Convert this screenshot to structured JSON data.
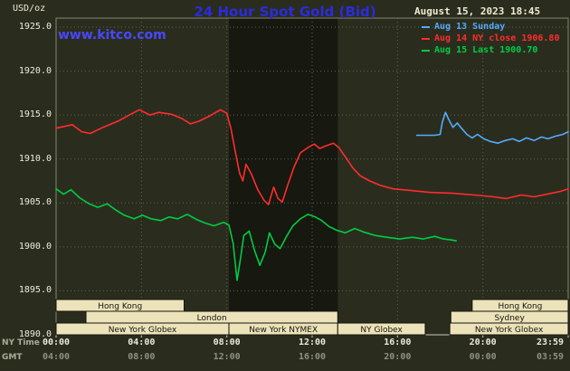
{
  "header": {
    "units_label": "USD/oz",
    "title": "24 Hour Spot Gold (Bid)",
    "datetime": "August 15, 2023 18:45",
    "site_link": "www.kitco.com"
  },
  "axes": {
    "ny_time_caption": "NY Time",
    "gmt_caption": "GMT",
    "y_tick_labels": [
      "1925.0",
      "1920.0",
      "1915.0",
      "1910.0",
      "1905.0",
      "1900.0",
      "1895.0",
      "1890.0"
    ],
    "ny_tick_labels": [
      "00:00",
      "04:00",
      "08:00",
      "12:00",
      "16:00",
      "20:00",
      "23:59"
    ],
    "gmt_tick_labels": [
      "04:00",
      "08:00",
      "12:00",
      "16:00",
      "20:00",
      "00:00",
      "03:59"
    ]
  },
  "sessions": [
    {
      "row": 0,
      "start_h": 0,
      "end_h": 6.0,
      "label": "Hong Kong"
    },
    {
      "row": 0,
      "start_h": 19.5,
      "end_h": 24,
      "label": "Hong Kong"
    },
    {
      "row": 1,
      "start_h": 1.4,
      "end_h": 13.2,
      "label": "London"
    },
    {
      "row": 1,
      "start_h": 18.5,
      "end_h": 24,
      "label": "Sydney"
    },
    {
      "row": 2,
      "start_h": 0,
      "end_h": 8.1,
      "label": "New York Globex"
    },
    {
      "row": 2,
      "start_h": 8.1,
      "end_h": 13.2,
      "label": "New York NYMEX"
    },
    {
      "row": 2,
      "start_h": 13.2,
      "end_h": 17.3,
      "label": "NY Globex"
    },
    {
      "row": 2,
      "start_h": 18.45,
      "end_h": 24,
      "label": "New York Globex"
    }
  ],
  "colors": {
    "background": "#2a2d1e",
    "grid": "#5f624a",
    "plot_border": "#83856c",
    "axis": "#c9c9b4",
    "shaded_band": "rgba(0,0,0,0.45)",
    "session_fill": "#ece3ba",
    "session_border": "#15150d",
    "session_text": "#14140a",
    "title_blue": "#2b2bdd",
    "link_blue": "#4848ff",
    "date_cream": "#f2ead0"
  },
  "chart_data": {
    "type": "line",
    "title": "24 Hour Spot Gold (Bid)",
    "xlabel": "NY Time",
    "ylabel": "USD/oz",
    "xlim_hours": [
      0,
      24
    ],
    "ylim": [
      1890,
      1925
    ],
    "y_tick_step": 5,
    "x_tick_hours": [
      0,
      4,
      8,
      12,
      16,
      20,
      24
    ],
    "shaded_region_hours": [
      8.1,
      13.2
    ],
    "grid": true,
    "legend_position": "top-right",
    "series": [
      {
        "name": "Aug 13 Sunday",
        "color": "#55aaff",
        "points": [
          [
            16.9,
            1912.7
          ],
          [
            17.3,
            1912.7
          ],
          [
            17.75,
            1912.7
          ],
          [
            18.0,
            1912.8
          ],
          [
            18.1,
            1914.2
          ],
          [
            18.25,
            1915.3
          ],
          [
            18.4,
            1914.5
          ],
          [
            18.6,
            1913.6
          ],
          [
            18.8,
            1914.1
          ],
          [
            19.0,
            1913.5
          ],
          [
            19.25,
            1912.8
          ],
          [
            19.5,
            1912.4
          ],
          [
            19.75,
            1912.8
          ],
          [
            20.05,
            1912.3
          ],
          [
            20.35,
            1912.0
          ],
          [
            20.7,
            1911.8
          ],
          [
            21.05,
            1912.1
          ],
          [
            21.4,
            1912.3
          ],
          [
            21.7,
            1912.0
          ],
          [
            22.05,
            1912.4
          ],
          [
            22.4,
            1912.1
          ],
          [
            22.75,
            1912.5
          ],
          [
            23.05,
            1912.3
          ],
          [
            23.4,
            1912.6
          ],
          [
            23.75,
            1912.8
          ],
          [
            24,
            1913.1
          ]
        ]
      },
      {
        "name": "Aug 14 NY close 1906.80",
        "color": "#ff2d2d",
        "points": [
          [
            0,
            1913.5
          ],
          [
            0.76,
            1913.9
          ],
          [
            1.2,
            1913.1
          ],
          [
            1.6,
            1912.9
          ],
          [
            2.2,
            1913.6
          ],
          [
            2.9,
            1914.3
          ],
          [
            3.5,
            1915.1
          ],
          [
            3.9,
            1915.6
          ],
          [
            4.4,
            1915.0
          ],
          [
            4.8,
            1915.3
          ],
          [
            5.4,
            1915.1
          ],
          [
            5.9,
            1914.6
          ],
          [
            6.3,
            1914.0
          ],
          [
            6.7,
            1914.3
          ],
          [
            7.2,
            1914.9
          ],
          [
            7.7,
            1915.6
          ],
          [
            8.0,
            1915.2
          ],
          [
            8.2,
            1913.4
          ],
          [
            8.4,
            1910.8
          ],
          [
            8.6,
            1908.4
          ],
          [
            8.75,
            1907.5
          ],
          [
            8.9,
            1909.4
          ],
          [
            9.15,
            1908.3
          ],
          [
            9.45,
            1906.5
          ],
          [
            9.75,
            1905.3
          ],
          [
            9.95,
            1904.8
          ],
          [
            10.2,
            1906.8
          ],
          [
            10.4,
            1905.5
          ],
          [
            10.6,
            1905.1
          ],
          [
            10.85,
            1907.0
          ],
          [
            11.15,
            1909.1
          ],
          [
            11.45,
            1910.7
          ],
          [
            11.8,
            1911.3
          ],
          [
            12.1,
            1911.7
          ],
          [
            12.35,
            1911.2
          ],
          [
            12.65,
            1911.5
          ],
          [
            13.0,
            1911.8
          ],
          [
            13.25,
            1911.3
          ],
          [
            13.6,
            1910.1
          ],
          [
            13.9,
            1909.0
          ],
          [
            14.25,
            1908.1
          ],
          [
            14.7,
            1907.5
          ],
          [
            15.2,
            1907.0
          ],
          [
            15.8,
            1906.6
          ],
          [
            16.7,
            1906.4
          ],
          [
            17.5,
            1906.2
          ],
          [
            18.6,
            1906.1
          ],
          [
            19.6,
            1905.9
          ],
          [
            20.5,
            1905.7
          ],
          [
            21.1,
            1905.5
          ],
          [
            21.8,
            1905.9
          ],
          [
            22.4,
            1905.7
          ],
          [
            23.0,
            1906.0
          ],
          [
            23.6,
            1906.3
          ],
          [
            24,
            1906.6
          ]
        ]
      },
      {
        "name": "Aug 15 Last 1900.70",
        "color": "#00cc44",
        "points": [
          [
            0,
            1906.6
          ],
          [
            0.35,
            1906.0
          ],
          [
            0.7,
            1906.5
          ],
          [
            1.1,
            1905.6
          ],
          [
            1.55,
            1904.9
          ],
          [
            1.95,
            1904.5
          ],
          [
            2.4,
            1904.9
          ],
          [
            2.8,
            1904.2
          ],
          [
            3.2,
            1903.6
          ],
          [
            3.65,
            1903.2
          ],
          [
            4.05,
            1903.6
          ],
          [
            4.45,
            1903.2
          ],
          [
            4.9,
            1903.0
          ],
          [
            5.3,
            1903.4
          ],
          [
            5.7,
            1903.2
          ],
          [
            6.15,
            1903.7
          ],
          [
            6.6,
            1903.1
          ],
          [
            7.0,
            1902.7
          ],
          [
            7.4,
            1902.4
          ],
          [
            7.85,
            1902.8
          ],
          [
            8.1,
            1902.5
          ],
          [
            8.3,
            1900.4
          ],
          [
            8.48,
            1896.2
          ],
          [
            8.65,
            1898.8
          ],
          [
            8.8,
            1901.3
          ],
          [
            9.05,
            1901.8
          ],
          [
            9.3,
            1899.6
          ],
          [
            9.55,
            1897.9
          ],
          [
            9.8,
            1899.4
          ],
          [
            10.0,
            1901.6
          ],
          [
            10.25,
            1900.3
          ],
          [
            10.5,
            1899.8
          ],
          [
            10.8,
            1901.2
          ],
          [
            11.1,
            1902.4
          ],
          [
            11.45,
            1903.2
          ],
          [
            11.8,
            1903.7
          ],
          [
            12.15,
            1903.4
          ],
          [
            12.45,
            1903.0
          ],
          [
            12.8,
            1902.3
          ],
          [
            13.15,
            1901.9
          ],
          [
            13.55,
            1901.6
          ],
          [
            14.0,
            1902.1
          ],
          [
            14.4,
            1901.7
          ],
          [
            14.95,
            1901.3
          ],
          [
            15.5,
            1901.1
          ],
          [
            16.1,
            1900.9
          ],
          [
            16.7,
            1901.1
          ],
          [
            17.2,
            1900.9
          ],
          [
            17.75,
            1901.2
          ],
          [
            18.15,
            1900.9
          ],
          [
            18.5,
            1900.8
          ],
          [
            18.75,
            1900.7
          ]
        ]
      }
    ]
  }
}
